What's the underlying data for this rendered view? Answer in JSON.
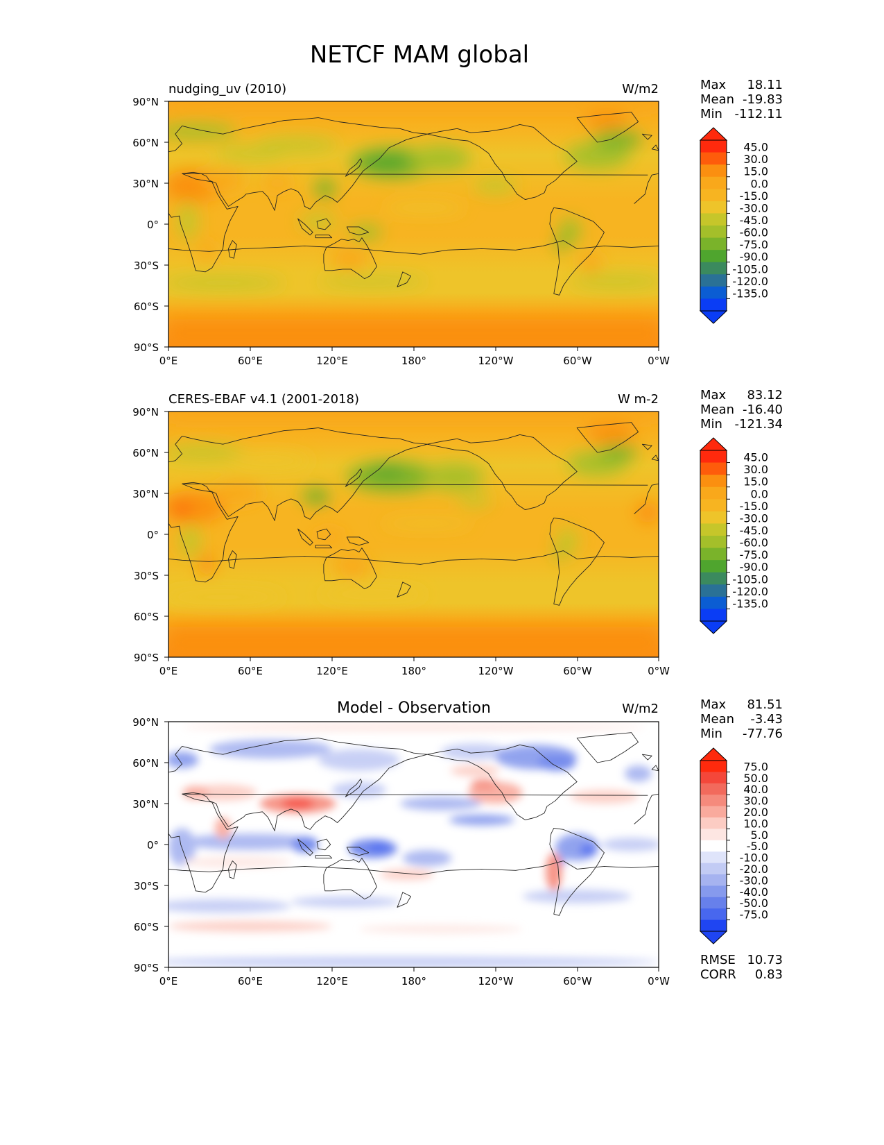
{
  "figure": {
    "title": "NETCF MAM global"
  },
  "axes": {
    "lat_ticks": [
      "90°N",
      "60°N",
      "30°N",
      "0°",
      "30°S",
      "60°S",
      "90°S"
    ],
    "lon_ticks": [
      "0°E",
      "60°E",
      "120°E",
      "180°",
      "120°W",
      "60°W",
      "0°W"
    ]
  },
  "panels": [
    {
      "left_title": "nudging_uv (2010)",
      "center_title": "",
      "units": "W/m2",
      "stats": [
        {
          "label": "Max",
          "value": "18.11"
        },
        {
          "label": "Mean",
          "value": "-19.83"
        },
        {
          "label": "Min",
          "value": "-112.11"
        }
      ],
      "colorbar": {
        "labels": [
          "45.0",
          "30.0",
          "15.0",
          "0.0",
          "-15.0",
          "-30.0",
          "-45.0",
          "-60.0",
          "-75.0",
          "-90.0",
          "-105.0",
          "-120.0",
          "-135.0"
        ],
        "colors": [
          "#ff2a0d",
          "#fe5c0b",
          "#fb8f10",
          "#f9a81b",
          "#f7b421",
          "#eec42a",
          "#c6c62a",
          "#a4bf2a",
          "#7ab32a",
          "#4fa52e",
          "#3b8a5e",
          "#2a7196",
          "#0b5dd3",
          "#0a3df5"
        ],
        "extend_top": "#ff2a0d",
        "extend_bottom": "#0a3df5"
      },
      "extra_stats": []
    },
    {
      "left_title": "CERES-EBAF v4.1 (2001-2018)",
      "center_title": "",
      "units": "W m-2",
      "stats": [
        {
          "label": "Max",
          "value": "83.12"
        },
        {
          "label": "Mean",
          "value": "-16.40"
        },
        {
          "label": "Min",
          "value": "-121.34"
        }
      ],
      "colorbar": {
        "labels": [
          "45.0",
          "30.0",
          "15.0",
          "0.0",
          "-15.0",
          "-30.0",
          "-45.0",
          "-60.0",
          "-75.0",
          "-90.0",
          "-105.0",
          "-120.0",
          "-135.0"
        ],
        "colors": [
          "#ff2a0d",
          "#fe5c0b",
          "#fb8f10",
          "#f9a81b",
          "#f7b421",
          "#eec42a",
          "#c6c62a",
          "#a4bf2a",
          "#7ab32a",
          "#4fa52e",
          "#3b8a5e",
          "#2a7196",
          "#0b5dd3",
          "#0a3df5"
        ],
        "extend_top": "#ff2a0d",
        "extend_bottom": "#0a3df5"
      },
      "extra_stats": []
    },
    {
      "left_title": "",
      "center_title": "Model - Observation",
      "units": "W/m2",
      "stats": [
        {
          "label": "Max",
          "value": "81.51"
        },
        {
          "label": "Mean",
          "value": "-3.43"
        },
        {
          "label": "Min",
          "value": "-77.76"
        }
      ],
      "colorbar": {
        "labels": [
          "75.0",
          "50.0",
          "40.0",
          "30.0",
          "20.0",
          "10.0",
          "5.0",
          "-5.0",
          "-10.0",
          "-20.0",
          "-30.0",
          "-40.0",
          "-50.0",
          "-75.0"
        ],
        "colors": [
          "#ff2a0d",
          "#f4473a",
          "#f26a5c",
          "#f58a7c",
          "#f9aa9d",
          "#fcccc3",
          "#fde6e2",
          "#ffffff",
          "#dfe4fa",
          "#c2cbf4",
          "#a6b3f0",
          "#869aed",
          "#6780eb",
          "#4867ee",
          "#1f45f2"
        ],
        "extend_top": "#ff2a0d",
        "extend_bottom": "#1f45f2"
      },
      "extra_stats": [
        {
          "label": "RMSE",
          "value": "10.73"
        },
        {
          "label": "CORR",
          "value": "0.83"
        }
      ]
    }
  ]
}
